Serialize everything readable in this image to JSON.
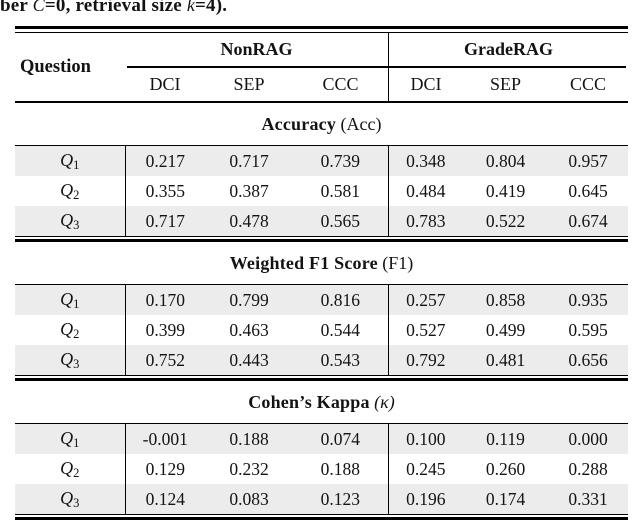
{
  "caption": {
    "segments": [
      {
        "text": "ber ",
        "style": "bold"
      },
      {
        "text": "C",
        "style": "math"
      },
      {
        "text": "=0, retrieval size ",
        "style": "bold"
      },
      {
        "text": "k",
        "style": "math"
      },
      {
        "text": "=4).",
        "style": "bold"
      }
    ]
  },
  "table": {
    "row_header": "Question",
    "groups": [
      {
        "label": "NonRAG",
        "cols": [
          "DCI",
          "SEP",
          "CCC"
        ]
      },
      {
        "label": "GradeRAG",
        "cols": [
          "DCI",
          "SEP",
          "CCC"
        ]
      }
    ],
    "sections": [
      {
        "title": "Accuracy",
        "title_paren": "(Acc)",
        "italic_paren": false,
        "rows": [
          {
            "label": "Q",
            "sub": "1",
            "values": [
              "0.217",
              "0.717",
              "0.739",
              "0.348",
              "0.804",
              "0.957"
            ]
          },
          {
            "label": "Q",
            "sub": "2",
            "values": [
              "0.355",
              "0.387",
              "0.581",
              "0.484",
              "0.419",
              "0.645"
            ]
          },
          {
            "label": "Q",
            "sub": "3",
            "values": [
              "0.717",
              "0.478",
              "0.565",
              "0.783",
              "0.522",
              "0.674"
            ]
          }
        ]
      },
      {
        "title": "Weighted F1 Score",
        "title_paren": "(F1)",
        "italic_paren": false,
        "rows": [
          {
            "label": "Q",
            "sub": "1",
            "values": [
              "0.170",
              "0.799",
              "0.816",
              "0.257",
              "0.858",
              "0.935"
            ]
          },
          {
            "label": "Q",
            "sub": "2",
            "values": [
              "0.399",
              "0.463",
              "0.544",
              "0.527",
              "0.499",
              "0.595"
            ]
          },
          {
            "label": "Q",
            "sub": "3",
            "values": [
              "0.752",
              "0.443",
              "0.543",
              "0.792",
              "0.481",
              "0.656"
            ]
          }
        ]
      },
      {
        "title": "Cohen’s Kappa",
        "title_paren": "(κ)",
        "italic_paren": true,
        "rows": [
          {
            "label": "Q",
            "sub": "1",
            "values": [
              "-0.001",
              "0.188",
              "0.074",
              "0.100",
              "0.119",
              "0.000"
            ]
          },
          {
            "label": "Q",
            "sub": "2",
            "values": [
              "0.129",
              "0.232",
              "0.188",
              "0.245",
              "0.260",
              "0.288"
            ]
          },
          {
            "label": "Q",
            "sub": "3",
            "values": [
              "0.124",
              "0.083",
              "0.123",
              "0.196",
              "0.174",
              "0.331"
            ]
          }
        ]
      }
    ]
  },
  "colors": {
    "row_shade": "#ececec",
    "rule": "#000000",
    "background": "#ffffff"
  }
}
